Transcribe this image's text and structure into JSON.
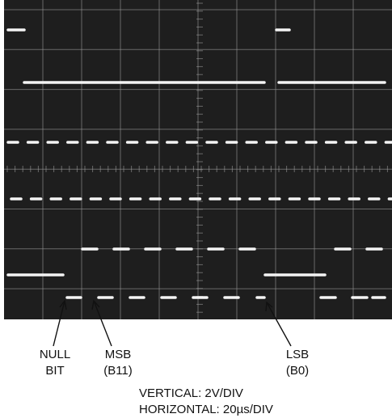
{
  "annotations": [
    {
      "lines": [
        "NULL",
        "BIT"
      ]
    },
    {
      "lines": [
        "MSB",
        "(B11)"
      ]
    },
    {
      "lines": [
        "LSB",
        "(B0)"
      ]
    }
  ],
  "scale": {
    "vertical": "VERTICAL: 2V/DIV",
    "horizontal": "HORIZONTAL: 20µs/DIV"
  }
}
